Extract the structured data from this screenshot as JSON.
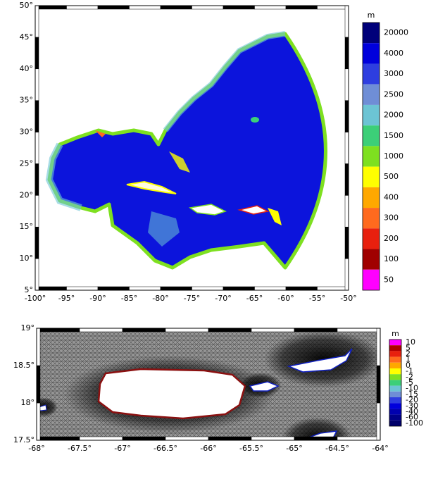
{
  "panels": [
    {
      "x_labels": [
        "-100°",
        "-95°",
        "-90°",
        "-85°",
        "-80°",
        "-75°",
        "-70°",
        "-65°",
        "-60°",
        "-55°",
        "-50°"
      ],
      "y_labels": [
        "5°",
        "10°",
        "15°",
        "20°",
        "25°",
        "30°",
        "35°",
        "40°",
        "45°",
        "50°"
      ],
      "colorbar": {
        "unit": "m",
        "labels": [
          "20000",
          "4000",
          "3000",
          "2500",
          "2000",
          "1500",
          "1000",
          "500",
          "400",
          "300",
          "200",
          "100",
          "50"
        ],
        "colors": [
          "#00007a",
          "#0000dc",
          "#2e3ee0",
          "#6f8ed6",
          "#6cc4d4",
          "#3ccf78",
          "#7ee020",
          "#ffff00",
          "#ffa800",
          "#ff6a1e",
          "#e8200e",
          "#a00000",
          "#ff00ff"
        ]
      }
    },
    {
      "x_labels": [
        "-68°",
        "-67.5°",
        "-67°",
        "-66.5°",
        "-66°",
        "-65.5°",
        "-65°",
        "-64.5°",
        "-64°"
      ],
      "y_labels": [
        "17.5°",
        "18°",
        "18.5°",
        "19°"
      ],
      "colorbar": {
        "unit": "m",
        "labels": [
          "10",
          "5",
          "2",
          "1",
          "0",
          "-1",
          "-2",
          "-5",
          "-10",
          "-15",
          "-20",
          "-30",
          "-40",
          "-60",
          "-100"
        ],
        "colors": [
          "#ff00ff",
          "#b00000",
          "#e8200e",
          "#ff6a1e",
          "#ffa800",
          "#ffff00",
          "#7ee020",
          "#3ccf78",
          "#6cc4d4",
          "#6f8ed6",
          "#2e3ee0",
          "#0000dc",
          "#0000b0",
          "#00008a",
          "#00006a"
        ]
      }
    }
  ]
}
